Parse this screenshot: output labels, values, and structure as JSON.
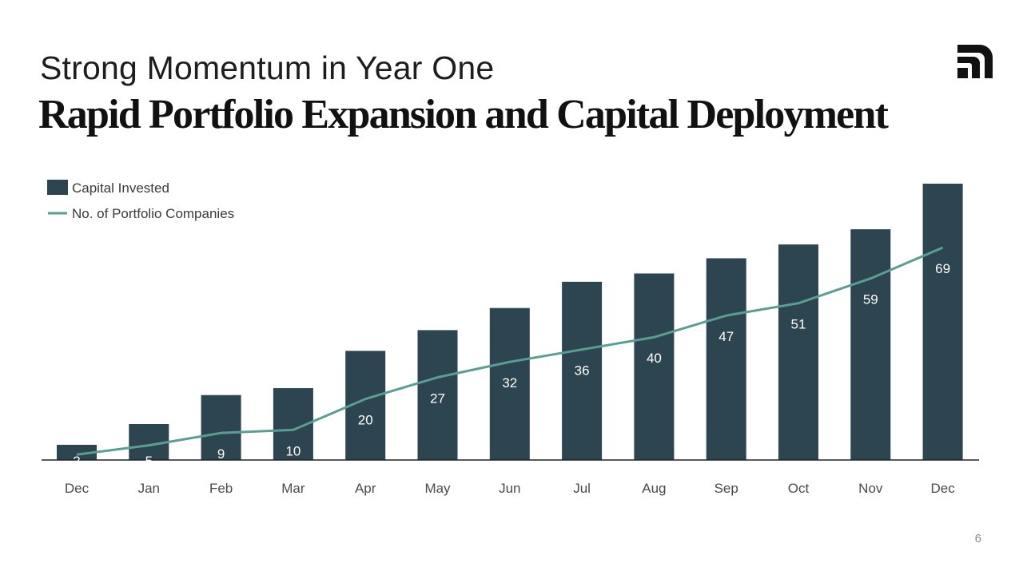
{
  "slide": {
    "subtitle": "Strong Momentum in Year One",
    "title": "Rapid Portfolio Expansion and Capital Deployment",
    "page_number": "6",
    "logo": "brand-logo"
  },
  "colors": {
    "bar": "#2d4550",
    "line": "#5a9e92",
    "axis": "#222222"
  },
  "chart_data": {
    "type": "bar",
    "categories": [
      "Dec",
      "Jan",
      "Feb",
      "Mar",
      "Apr",
      "May",
      "Jun",
      "Jul",
      "Aug",
      "Sep",
      "Oct",
      "Nov",
      "Dec"
    ],
    "series": [
      {
        "name": "Capital Invested",
        "type": "bar",
        "values": [
          5.5,
          13,
          23.5,
          26,
          39.5,
          47,
          55,
          64.5,
          67.5,
          73,
          78,
          83.5,
          100
        ]
      },
      {
        "name": "No. of Portfolio Companies",
        "type": "line",
        "values": [
          2,
          5,
          9,
          10,
          20,
          27,
          32,
          36,
          40,
          47,
          51,
          59,
          69
        ],
        "labels": [
          "2",
          "5",
          "9",
          "10",
          "20",
          "27",
          "32",
          "36",
          "40",
          "47",
          "51",
          "59",
          "69"
        ]
      }
    ],
    "legend_position": "top-left",
    "grid": false
  }
}
